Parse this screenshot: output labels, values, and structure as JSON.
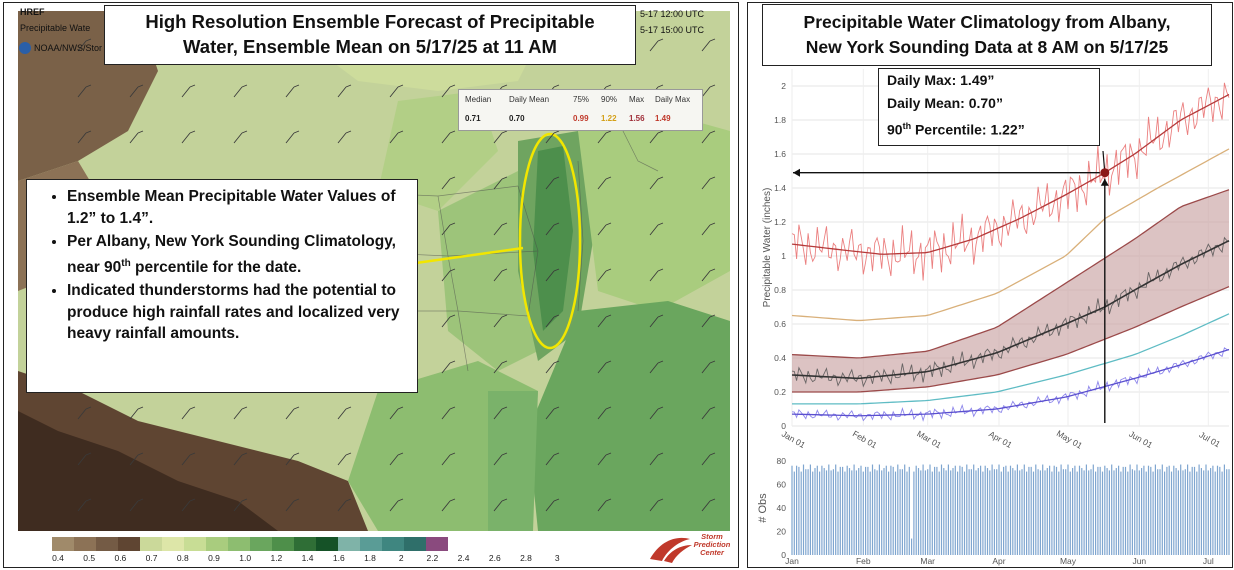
{
  "left_panel": {
    "title_line1": "High Resolution Ensemble Forecast of Precipitable",
    "title_line2": "Water, Ensemble Mean on 5/17/25 at 11 AM",
    "header_product": "HREF",
    "header_field": "Precipitable Wate",
    "header_org": "NOAA/NWS/Stor",
    "header_time1": "5-17 12:00 UTC",
    "header_time2": "5-17 15:00 UTC",
    "bullets": [
      "Ensemble Mean Precipitable Water Values of 1.2” to 1.4”.",
      "Per Albany, New York Sounding Climatology, near 90th percentile for the date.",
      "Indicated thunderstorms had the potential to produce high rainfall rates and localized very heavy rainfall amounts."
    ],
    "bullet2_a": "Per Albany, New York Sounding Climatology, near 90",
    "bullet2_sup": "th",
    "bullet2_b": " percentile for the date.",
    "stats_table": {
      "headers": [
        "Median",
        "Daily Mean",
        "75%",
        "90%",
        "Max",
        "Daily Max"
      ],
      "values": [
        "0.71",
        "0.70",
        "0.99",
        "1.22",
        "1.56",
        "1.49"
      ],
      "value_colors": [
        "#222222",
        "#222222",
        "#c0392b",
        "#d4a017",
        "#a0303a",
        "#c0392b"
      ]
    },
    "colorbar": {
      "labels": [
        "0.4",
        "0.5",
        "0.6",
        "0.7",
        "0.8",
        "0.9",
        "1.0",
        "1.2",
        "1.4",
        "1.6",
        "1.8",
        "2",
        "2.2",
        "2.4",
        "2.6",
        "2.8",
        "3"
      ],
      "colors": [
        "#a08a6a",
        "#8c7256",
        "#745b45",
        "#5f4532",
        "#cbd99a",
        "#dde6a8",
        "#c8dd95",
        "#a9cc7e",
        "#8dbd70",
        "#6aa65e",
        "#4e8f4a",
        "#2f6e36",
        "#155227",
        "#7fb3a8",
        "#5a9c96",
        "#3f8680",
        "#2f6f6a",
        "#8a4a7e"
      ]
    },
    "logo_text": [
      "Storm",
      "Prediction",
      "Center"
    ]
  },
  "right_panel": {
    "title_line1": "Precipitable Water Climatology from Albany,",
    "title_line2": "New York Sounding Data at 8 AM on 5/17/25",
    "annotation": {
      "line1": "Daily Max: 1.49”",
      "line2": "Daily Mean: 0.70”",
      "line3_a": "90",
      "line3_sup": "th",
      "line3_b": " Percentile: 1.22”"
    }
  },
  "chart_data": [
    {
      "type": "line",
      "ylabel": "Precipitable Water (inches)",
      "x_ticks": [
        "Jan 01",
        "Feb 01",
        "Mar 01",
        "Apr 01",
        "May 01",
        "Jun 01",
        "Jul 01"
      ],
      "x_tick_days": [
        1,
        32,
        60,
        91,
        121,
        152,
        182
      ],
      "xlim": [
        1,
        191
      ],
      "ylim": [
        0,
        2.1
      ],
      "y_ticks": [
        0,
        0.2,
        0.4,
        0.6,
        0.8,
        1,
        1.2,
        1.4,
        1.6,
        1.8,
        2
      ],
      "highlight_point": {
        "x": 137,
        "y": 1.49
      },
      "series": [
        {
          "key": "max_smooth",
          "color": "#b53a3a",
          "x": [
            1,
            20,
            40,
            60,
            80,
            100,
            120,
            137,
            150,
            170,
            191
          ],
          "values": [
            1.07,
            1.04,
            1.01,
            1.02,
            1.1,
            1.22,
            1.36,
            1.49,
            1.6,
            1.8,
            1.95
          ]
        },
        {
          "key": "p90",
          "color": "#d9b07a",
          "x": [
            1,
            30,
            60,
            90,
            120,
            137,
            160,
            191
          ],
          "values": [
            0.65,
            0.62,
            0.65,
            0.78,
            1.0,
            1.22,
            1.4,
            1.63
          ]
        },
        {
          "key": "p75",
          "color": "#9b4a4a",
          "x": [
            1,
            30,
            60,
            90,
            120,
            150,
            170,
            191
          ],
          "values": [
            0.42,
            0.4,
            0.44,
            0.58,
            0.84,
            1.1,
            1.29,
            1.39
          ]
        },
        {
          "key": "mean",
          "color": "#333333",
          "x": [
            1,
            30,
            60,
            90,
            120,
            137,
            150,
            170,
            191
          ],
          "values": [
            0.3,
            0.28,
            0.32,
            0.43,
            0.6,
            0.7,
            0.8,
            0.95,
            1.09
          ]
        },
        {
          "key": "p25",
          "color": "#9b4a4a",
          "x": [
            1,
            30,
            60,
            90,
            120,
            150,
            170,
            191
          ],
          "values": [
            0.2,
            0.2,
            0.23,
            0.3,
            0.42,
            0.58,
            0.7,
            0.82
          ]
        },
        {
          "key": "p10",
          "color": "#5fbcc4",
          "x": [
            1,
            30,
            60,
            90,
            120,
            150,
            170,
            191
          ],
          "values": [
            0.13,
            0.13,
            0.15,
            0.2,
            0.3,
            0.42,
            0.53,
            0.66
          ]
        },
        {
          "key": "min_smooth",
          "color": "#5a4fcf",
          "x": [
            1,
            30,
            60,
            90,
            120,
            150,
            170,
            191
          ],
          "values": [
            0.07,
            0.06,
            0.07,
            0.1,
            0.17,
            0.28,
            0.36,
            0.45
          ]
        }
      ]
    },
    {
      "type": "bar",
      "ylabel": "# Obs",
      "x_ticks": [
        "Jan",
        "Feb",
        "Mar",
        "Apr",
        "May",
        "Jun",
        "Jul"
      ],
      "x_tick_days": [
        1,
        32,
        60,
        91,
        121,
        152,
        182
      ],
      "ylim": [
        0,
        80
      ],
      "y_ticks": [
        0,
        20,
        40,
        60,
        80
      ],
      "typical_value": 74,
      "low_value": 14,
      "low_day": 53,
      "xlim": [
        1,
        191
      ]
    }
  ]
}
